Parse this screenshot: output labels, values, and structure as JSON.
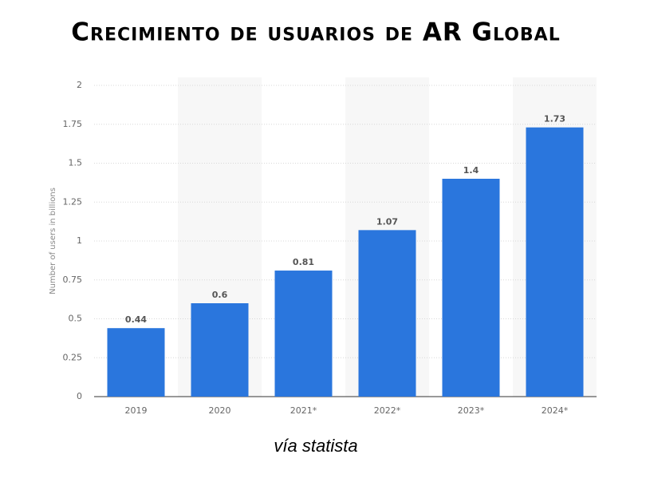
{
  "chart_data": {
    "type": "bar",
    "title": "Crecimiento de usuarios de AR Global",
    "y_label": "Number of users in billions",
    "source": "vía statista",
    "categories": [
      "2019",
      "2020",
      "2021*",
      "2022*",
      "2023*",
      "2024*"
    ],
    "values": [
      0.44,
      0.6,
      0.81,
      1.07,
      1.4,
      1.73
    ],
    "color": "#2a76dd",
    "ylim": [
      0,
      2
    ],
    "yticks": [
      0,
      0.25,
      0.5,
      0.75,
      1,
      1.25,
      1.5,
      1.75,
      2
    ],
    "grid": true
  }
}
